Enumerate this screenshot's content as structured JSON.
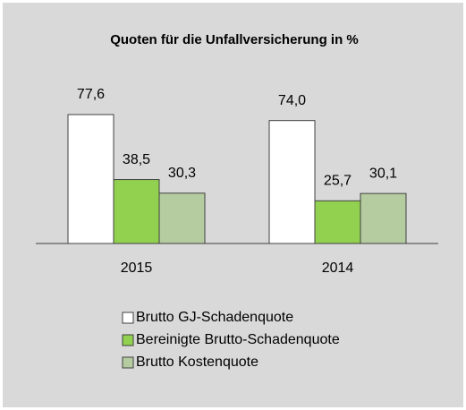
{
  "chart_data": {
    "type": "bar",
    "title": "Quoten für die Unfallversicherung in %",
    "categories": [
      "2015",
      "2014"
    ],
    "series": [
      {
        "name": "Brutto GJ-Schadenquote",
        "color": "#ffffff",
        "values": [
          77.6,
          74.0
        ],
        "value_labels": [
          "77,6",
          "74,0"
        ]
      },
      {
        "name": "Bereinigte Brutto-Schadenquote",
        "color": "#92d050",
        "values": [
          38.5,
          25.7
        ],
        "value_labels": [
          "38,5",
          "25,7"
        ]
      },
      {
        "name": "Brutto Kostenquote",
        "color": "#b4cca0",
        "values": [
          30.3,
          30.1
        ],
        "value_labels": [
          "30,3",
          "30,1"
        ]
      }
    ],
    "ylim": [
      0,
      90
    ],
    "legend": "bottom"
  }
}
